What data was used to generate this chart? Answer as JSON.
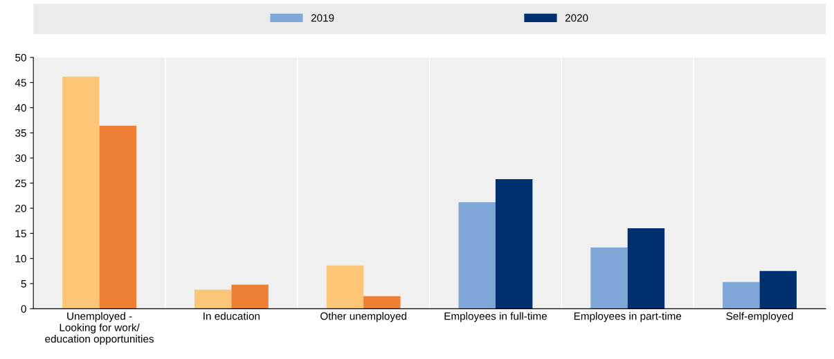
{
  "chart_data": {
    "type": "bar",
    "categories": [
      "Unemployed -\nLooking for work/\neducation opportunities",
      "In education",
      "Other unemployed",
      "Employees in full-time",
      "Employees in part-time",
      "Self-employed"
    ],
    "series": [
      {
        "name": "2019",
        "color": "#7fa8d9",
        "colors": [
          "#fdc576",
          "#fdc576",
          "#fdc576",
          "#7fa8d9",
          "#7fa8d9",
          "#7fa8d9"
        ],
        "values": [
          46.2,
          3.8,
          8.6,
          21.2,
          12.2,
          5.3
        ]
      },
      {
        "name": "2020",
        "color": "#003070",
        "colors": [
          "#ee8035",
          "#ee8035",
          "#ee8035",
          "#003070",
          "#003070",
          "#003070"
        ],
        "values": [
          36.4,
          4.8,
          2.5,
          25.8,
          16.0,
          7.5
        ]
      }
    ],
    "ylim": [
      0,
      50
    ],
    "yticks": [
      0,
      5,
      10,
      15,
      20,
      25,
      30,
      35,
      40,
      45,
      50
    ],
    "grid": false,
    "legend": "top"
  }
}
